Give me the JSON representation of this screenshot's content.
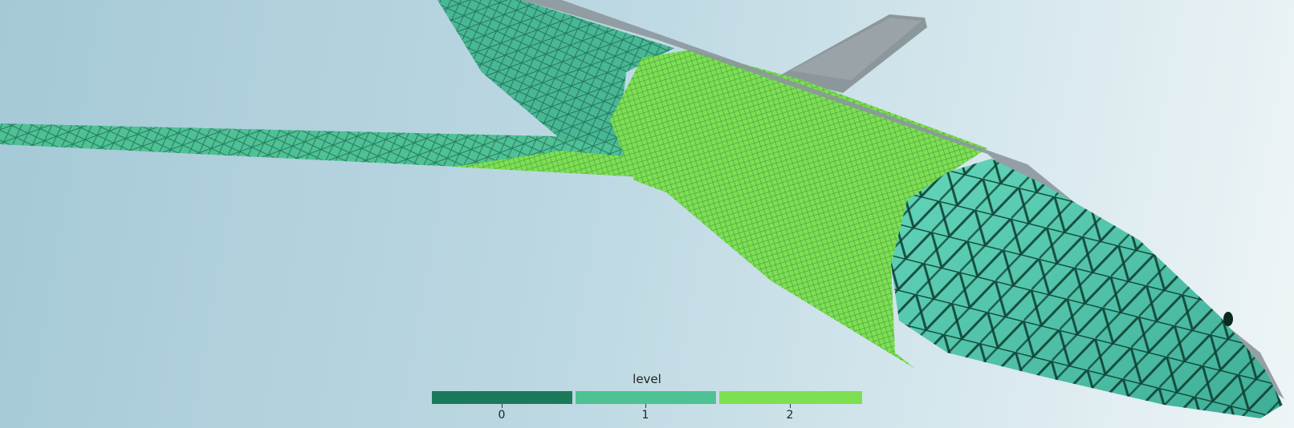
{
  "legend": {
    "title": "level",
    "levels": [
      {
        "label": "0",
        "color": "#1b7a5a"
      },
      {
        "label": "1",
        "color": "#4ec195"
      },
      {
        "label": "2",
        "color": "#7de052"
      }
    ]
  },
  "colors": {
    "level0": "#1b7a5a",
    "level1": "#4ec195",
    "level2": "#7de052",
    "tail": "#8c979c"
  }
}
